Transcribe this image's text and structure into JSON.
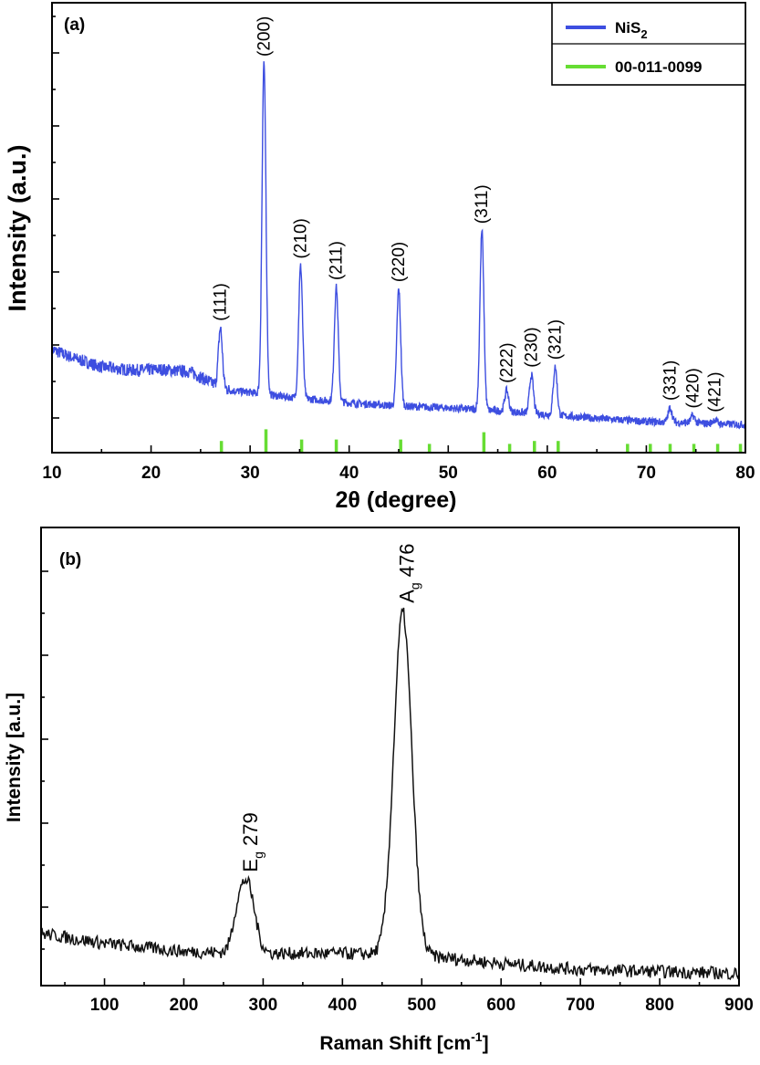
{
  "chart_data": [
    {
      "type": "line",
      "panel_label": "(a)",
      "xlabel": "2θ (degree)",
      "ylabel": "Intensity (a.u.)",
      "xlim": [
        10,
        80
      ],
      "xticks": [
        10,
        20,
        30,
        40,
        50,
        60,
        70,
        80
      ],
      "ylim": [
        0,
        100
      ],
      "grid": false,
      "legend_position": "top-right",
      "colors": {
        "xrd": "#3d4ee0",
        "ref": "#66dd33"
      },
      "series": [
        {
          "name": "NiS2",
          "legend_main": "NiS",
          "legend_sub": "2",
          "baseline": [
            [
              10,
              26.5
            ],
            [
              12,
              24.5
            ],
            [
              15,
              22
            ],
            [
              18,
              21.2
            ],
            [
              21,
              21.4
            ],
            [
              24,
              20.8
            ],
            [
              26,
              18
            ],
            [
              28,
              16
            ],
            [
              30,
              15.5
            ],
            [
              33,
              14.5
            ],
            [
              36,
              13.8
            ],
            [
              40,
              12.8
            ],
            [
              45,
              12
            ],
            [
              50,
              11.5
            ],
            [
              55,
              10.8
            ],
            [
              60,
              9.8
            ],
            [
              65,
              8.8
            ],
            [
              70,
              8
            ],
            [
              75,
              7.6
            ],
            [
              80,
              7.2
            ]
          ],
          "peaks": [
            {
              "x": 27.0,
              "label": "(111)",
              "height": 32.0
            },
            {
              "x": 31.4,
              "label": "(200)",
              "height": 100.0
            },
            {
              "x": 35.1,
              "label": "(210)",
              "height": 48.0
            },
            {
              "x": 38.7,
              "label": "(211)",
              "height": 42.5
            },
            {
              "x": 45.0,
              "label": "(220)",
              "height": 42.0
            },
            {
              "x": 53.4,
              "label": "(311)",
              "height": 57.0
            },
            {
              "x": 55.9,
              "label": "(222)",
              "height": 16.0
            },
            {
              "x": 58.4,
              "label": "(230)",
              "height": 20.0
            },
            {
              "x": 60.8,
              "label": "(321)",
              "height": 22.0
            },
            {
              "x": 72.4,
              "label": "(331)",
              "height": 11.5
            },
            {
              "x": 74.7,
              "label": "(420)",
              "height": 9.5
            },
            {
              "x": 76.9,
              "label": "(421)",
              "height": 8.5
            }
          ]
        },
        {
          "name": "00-011-0099",
          "legend": "00-011-0099",
          "type": "stick",
          "x": [
            27.1,
            31.6,
            35.2,
            38.7,
            45.2,
            48.1,
            53.6,
            56.2,
            58.7,
            61.1,
            68.1,
            70.4,
            72.4,
            74.8,
            77.2,
            79.5
          ],
          "heights": [
            8,
            16,
            9,
            9,
            9,
            6,
            14,
            6,
            8,
            8,
            6,
            6,
            6,
            6,
            6,
            6
          ]
        }
      ]
    },
    {
      "type": "line",
      "panel_label": "(b)",
      "xlabel": "Raman Shift [cm",
      "xlabel_sup": "-1",
      "xlabel_tail": "]",
      "ylabel": "Intensity [a.u.]",
      "xlim": [
        20,
        900
      ],
      "xticks": [
        100,
        200,
        300,
        400,
        500,
        600,
        700,
        800,
        900
      ],
      "ylim": [
        0,
        100
      ],
      "grid": false,
      "colors": {
        "raman": "#111111"
      },
      "series": [
        {
          "name": "Raman",
          "baseline": [
            [
              20,
              13
            ],
            [
              100,
              10.5
            ],
            [
              200,
              8.5
            ],
            [
              300,
              8
            ],
            [
              400,
              8
            ],
            [
              500,
              7.5
            ],
            [
              600,
              5.5
            ],
            [
              700,
              4
            ],
            [
              800,
              3.5
            ],
            [
              900,
              3
            ]
          ],
          "peaks": [
            {
              "x": 279,
              "label": "279",
              "mode": "E",
              "mode_sub": "g",
              "height": 26
            },
            {
              "x": 476,
              "label": "476",
              "mode": "A",
              "mode_sub": "g",
              "height": 93
            }
          ]
        }
      ]
    }
  ]
}
